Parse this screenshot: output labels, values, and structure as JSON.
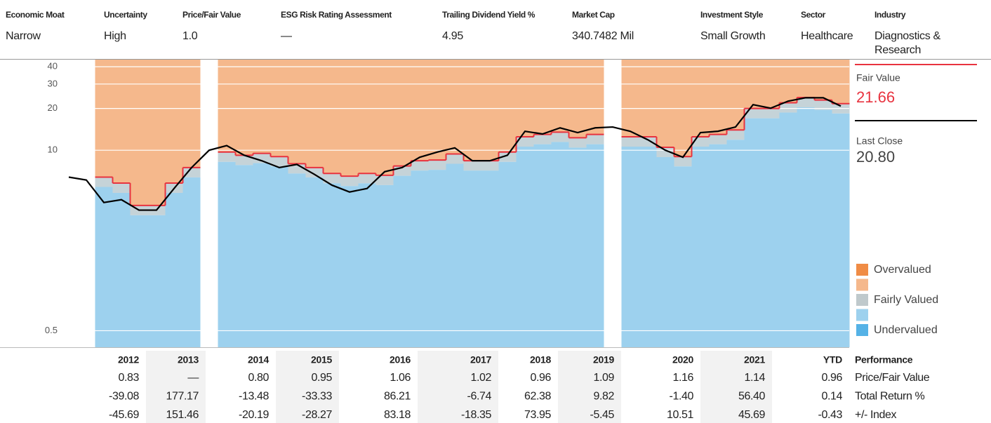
{
  "header": [
    {
      "label": "Economic Moat",
      "value": "Narrow"
    },
    {
      "label": "Uncertainty",
      "value": "High"
    },
    {
      "label": "Price/Fair Value",
      "value": "1.0"
    },
    {
      "label": "ESG Risk Rating Assessment",
      "value": "—"
    },
    {
      "label": "Trailing Dividend Yield %",
      "value": "4.95"
    },
    {
      "label": "Market Cap",
      "value": "340.7482 Mil"
    },
    {
      "label": "Investment Style",
      "value": "Small Growth"
    },
    {
      "label": "Sector",
      "value": "Healthcare"
    },
    {
      "label": "Industry",
      "value": "Diagnostics &",
      "value2": "Research"
    }
  ],
  "chart_data": {
    "type": "valuation",
    "log_scale": true,
    "ylim": [
      0.38,
      45
    ],
    "yticks": [
      0.5,
      10,
      20,
      30,
      40
    ],
    "price": {
      "color": "#000000",
      "values": [
        6.4,
        6.1,
        4.2,
        4.4,
        3.7,
        3.7,
        5.3,
        7.5,
        10,
        10.8,
        9.2,
        8.4,
        7.5,
        7.9,
        6.7,
        5.6,
        5.0,
        5.3,
        7.0,
        7.5,
        8.9,
        9.7,
        10.4,
        8.4,
        8.4,
        9.2,
        13.7,
        13.1,
        14.5,
        13.4,
        14.5,
        14.7,
        13.7,
        11.9,
        10,
        8.9,
        13.4,
        13.7,
        14.7,
        21.3,
        20.1,
        22.6,
        23.9,
        23.9,
        20.8
      ]
    },
    "fair_value": {
      "color": "#e8333f",
      "values": [
        null,
        null,
        6.4,
        5.8,
        4.0,
        4.0,
        5.8,
        7.5,
        null,
        9.7,
        9.2,
        9.5,
        9.0,
        8.0,
        7.5,
        6.8,
        6.5,
        6.8,
        6.6,
        7.7,
        8.4,
        8.5,
        9.4,
        8.4,
        8.4,
        9.7,
        12.5,
        13.0,
        13.5,
        12.3,
        13.0,
        null,
        12.5,
        12.5,
        10.5,
        9.0,
        12.5,
        13.0,
        14.0,
        20.0,
        20.0,
        22.0,
        24.0,
        23.0,
        21.66
      ]
    },
    "band_colors": {
      "over": "#f5b88c",
      "under": "#9dd1ee"
    },
    "legend": [
      {
        "label": "Overvalued",
        "color": "#f08c45"
      },
      {
        "label": null,
        "color": "#f5b88c"
      },
      {
        "label": "Fairly Valued",
        "color": "#bfc9cc"
      },
      {
        "label": null,
        "color": "#9dd1ee"
      },
      {
        "label": "Undervalued",
        "color": "#55b2e6"
      }
    ]
  },
  "side": {
    "fair_value_label": "Fair Value",
    "fair_value": "21.66",
    "last_close_label": "Last Close",
    "last_close": "20.80"
  },
  "table": {
    "title": "Performance",
    "columns": [
      "2012",
      "2013",
      "2014",
      "2015",
      "2016",
      "2017",
      "2018",
      "2019",
      "2020",
      "2021",
      "YTD"
    ],
    "rows": [
      {
        "label": "Price/Fair Value",
        "values": [
          "0.83",
          "—",
          "0.80",
          "0.95",
          "1.06",
          "1.02",
          "0.96",
          "1.09",
          "1.16",
          "1.14",
          "0.96"
        ]
      },
      {
        "label": "Total Return %",
        "values": [
          "-39.08",
          "177.17",
          "-13.48",
          "-33.33",
          "86.21",
          "-6.74",
          "62.38",
          "9.82",
          "-1.40",
          "56.40",
          "0.14"
        ]
      },
      {
        "label": "+/- Index",
        "values": [
          "-45.69",
          "151.46",
          "-20.19",
          "-28.27",
          "83.18",
          "-18.35",
          "73.95",
          "-5.45",
          "10.51",
          "45.69",
          "-0.43"
        ]
      }
    ]
  }
}
